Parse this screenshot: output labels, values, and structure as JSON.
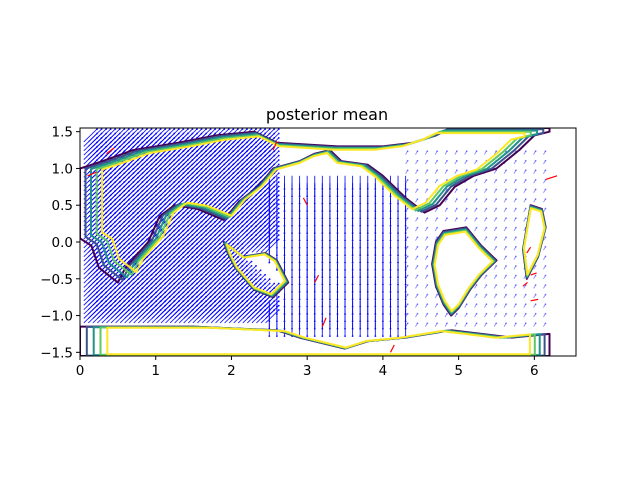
{
  "chart_data": {
    "type": "contour+quiver",
    "title": "posterior mean",
    "xlabel": "",
    "ylabel": "",
    "xlim": [
      0,
      6.55
    ],
    "ylim": [
      -1.55,
      1.55
    ],
    "x_ticks": [
      0,
      1,
      2,
      3,
      4,
      5,
      6
    ],
    "y_ticks": [
      -1.5,
      -1.0,
      -0.5,
      0.0,
      0.5,
      1.0,
      1.5
    ],
    "x_tick_labels": [
      "0",
      "1",
      "2",
      "3",
      "4",
      "5",
      "6"
    ],
    "y_tick_labels": [
      "−1.5",
      "−1.0",
      "−0.5",
      "0.0",
      "0.5",
      "1.0",
      "1.5"
    ],
    "grid": false,
    "legend": "none",
    "contour_levels_colors": [
      "#440154",
      "#3b528b",
      "#21918c",
      "#5ec962",
      "#fde725"
    ],
    "quiver_colors": {
      "primary": "#0000ff",
      "secondary": "#ff0000"
    },
    "coastlines": [
      {
        "name": "west-landmass",
        "points": [
          [
            0.0,
            0.05
          ],
          [
            0.15,
            -0.05
          ],
          [
            0.25,
            -0.35
          ],
          [
            0.5,
            -0.55
          ],
          [
            0.6,
            -0.35
          ],
          [
            0.9,
            0.0
          ],
          [
            1.05,
            0.35
          ],
          [
            1.25,
            0.5
          ],
          [
            1.55,
            0.45
          ],
          [
            1.9,
            0.3
          ],
          [
            2.1,
            0.55
          ],
          [
            2.35,
            0.75
          ],
          [
            2.55,
            1.0
          ],
          [
            2.9,
            1.1
          ],
          [
            3.1,
            1.2
          ],
          [
            3.3,
            1.25
          ],
          [
            3.45,
            1.1
          ],
          [
            3.8,
            1.05
          ],
          [
            4.0,
            0.9
          ],
          [
            4.3,
            0.6
          ],
          [
            4.55,
            0.4
          ],
          [
            4.75,
            0.5
          ],
          [
            4.95,
            0.75
          ],
          [
            5.2,
            0.9
          ],
          [
            5.5,
            1.0
          ],
          [
            5.8,
            1.25
          ],
          [
            6.0,
            1.45
          ],
          [
            6.2,
            1.5
          ],
          [
            6.2,
            1.55
          ],
          [
            4.9,
            1.55
          ],
          [
            4.7,
            1.45
          ],
          [
            4.4,
            1.35
          ],
          [
            4.0,
            1.3
          ],
          [
            3.4,
            1.3
          ],
          [
            2.6,
            1.35
          ],
          [
            2.3,
            1.5
          ],
          [
            1.8,
            1.45
          ],
          [
            1.3,
            1.35
          ],
          [
            0.7,
            1.25
          ],
          [
            0.3,
            1.1
          ],
          [
            0.0,
            1.0
          ]
        ]
      },
      {
        "name": "central-island",
        "points": [
          [
            1.9,
            0.0
          ],
          [
            2.15,
            -0.2
          ],
          [
            2.45,
            -0.15
          ],
          [
            2.6,
            -0.25
          ],
          [
            2.75,
            -0.55
          ],
          [
            2.55,
            -0.75
          ],
          [
            2.3,
            -0.65
          ],
          [
            2.05,
            -0.35
          ],
          [
            1.95,
            -0.15
          ]
        ]
      },
      {
        "name": "east-landmass",
        "points": [
          [
            4.8,
            0.15
          ],
          [
            5.1,
            0.2
          ],
          [
            5.3,
            -0.05
          ],
          [
            5.5,
            -0.25
          ],
          [
            5.3,
            -0.45
          ],
          [
            5.15,
            -0.65
          ],
          [
            5.0,
            -0.9
          ],
          [
            4.9,
            -1.0
          ],
          [
            4.8,
            -0.85
          ],
          [
            4.7,
            -0.6
          ],
          [
            4.65,
            -0.3
          ],
          [
            4.7,
            0.0
          ]
        ]
      },
      {
        "name": "south-landmass",
        "points": [
          [
            0.0,
            -1.15
          ],
          [
            1.5,
            -1.15
          ],
          [
            2.6,
            -1.2
          ],
          [
            2.9,
            -1.3
          ],
          [
            3.5,
            -1.45
          ],
          [
            3.8,
            -1.35
          ],
          [
            4.3,
            -1.3
          ],
          [
            4.9,
            -1.2
          ],
          [
            5.3,
            -1.25
          ],
          [
            5.7,
            -1.3
          ],
          [
            6.2,
            -1.25
          ],
          [
            6.2,
            -1.55
          ],
          [
            0.0,
            -1.55
          ]
        ]
      },
      {
        "name": "east-island",
        "points": [
          [
            5.95,
            0.5
          ],
          [
            6.1,
            0.45
          ],
          [
            6.15,
            0.2
          ],
          [
            6.05,
            -0.2
          ],
          [
            5.9,
            -0.5
          ],
          [
            5.85,
            -0.1
          ],
          [
            5.9,
            0.2
          ]
        ]
      }
    ],
    "flow_regions": [
      {
        "name": "dense-diagonal-west",
        "x_range": [
          0.05,
          2.5
        ],
        "y_range": [
          -1.1,
          1.4
        ],
        "u": 0.7,
        "v": 0.7,
        "density": "high"
      },
      {
        "name": "southward-central",
        "x_range": [
          2.5,
          4.3
        ],
        "y_range": [
          -1.1,
          0.95
        ],
        "u": 0.0,
        "v": -1.0,
        "density": "medium"
      },
      {
        "name": "light-east",
        "x_range": [
          4.3,
          6.2
        ],
        "y_range": [
          -1.15,
          1.2
        ],
        "u": 0.3,
        "v": 0.5,
        "density": "low"
      }
    ]
  }
}
